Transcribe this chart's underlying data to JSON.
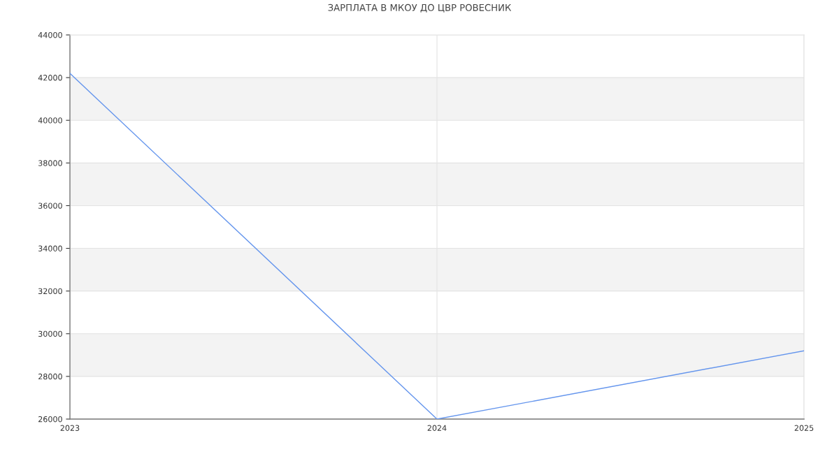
{
  "chart_data": {
    "type": "line",
    "title": "ЗАРПЛАТА В МКОУ ДО ЦВР РОВЕСНИК",
    "x": [
      2023,
      2024,
      2025
    ],
    "series": [
      {
        "color": "#6495ed",
        "values": [
          42200,
          26000,
          29200
        ]
      }
    ],
    "xlim": [
      2023,
      2025
    ],
    "xticks": [
      2023,
      2024,
      2025
    ],
    "ylim": [
      26000,
      44000
    ],
    "yticks": [
      26000,
      28000,
      30000,
      32000,
      34000,
      36000,
      38000,
      40000,
      42000,
      44000
    ],
    "grid": true,
    "marker": "none",
    "line_style": "solid",
    "bands": [
      {
        "axis": "y",
        "from": 28000,
        "to": 30000,
        "color": "#f3f3f3"
      },
      {
        "axis": "y",
        "from": 32000,
        "to": 34000,
        "color": "#f3f3f3"
      },
      {
        "axis": "y",
        "from": 36000,
        "to": 38000,
        "color": "#f3f3f3"
      },
      {
        "axis": "y",
        "from": 40000,
        "to": 42000,
        "color": "#f3f3f3"
      }
    ]
  }
}
